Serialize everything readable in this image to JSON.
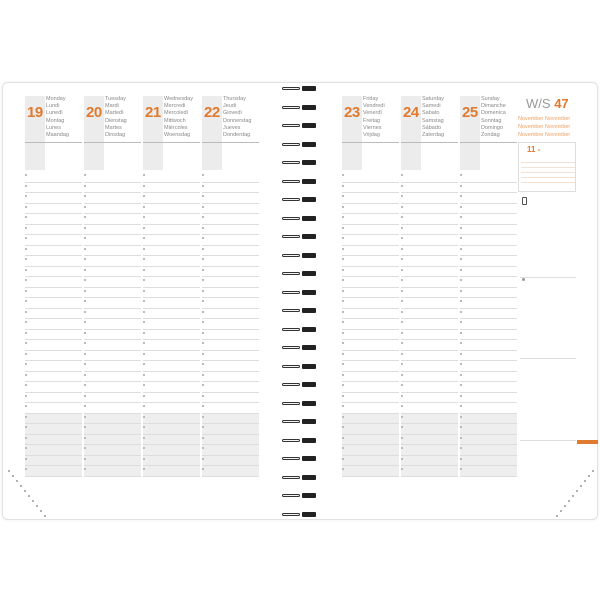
{
  "accent_color": "#e07a2e",
  "left_page": {
    "days": [
      {
        "num": "19",
        "names": [
          "Monday",
          "Lundi",
          "Lunedì",
          "Montag",
          "Lunes",
          "Maandag"
        ]
      },
      {
        "num": "20",
        "names": [
          "Tuesday",
          "Mardi",
          "Martedì",
          "Dienstag",
          "Martes",
          "Dinsdag"
        ]
      },
      {
        "num": "21",
        "names": [
          "Wednesday",
          "Mercredi",
          "Mercoledì",
          "Mittwoch",
          "Miércoles",
          "Woensdag"
        ]
      },
      {
        "num": "22",
        "names": [
          "Thursday",
          "Jeudi",
          "Giovedì",
          "Donnerstag",
          "Jueves",
          "Donderdag"
        ]
      }
    ]
  },
  "right_page": {
    "days": [
      {
        "num": "23",
        "names": [
          "Friday",
          "Vendredi",
          "Venerdì",
          "Freitag",
          "Viernes",
          "Vrijdag"
        ]
      },
      {
        "num": "24",
        "names": [
          "Saturday",
          "Samedi",
          "Sabato",
          "Samstag",
          "Sábado",
          "Zaterdag"
        ]
      },
      {
        "num": "25",
        "names": [
          "Sunday",
          "Dimanche",
          "Domenica",
          "Sonntag",
          "Domingo",
          "Zondag"
        ]
      }
    ]
  },
  "sidebar": {
    "week_prefix": "W/S",
    "week_number": "47",
    "months": [
      "November November",
      "November November",
      "Novembre November"
    ],
    "calendar_month": "11 -"
  }
}
